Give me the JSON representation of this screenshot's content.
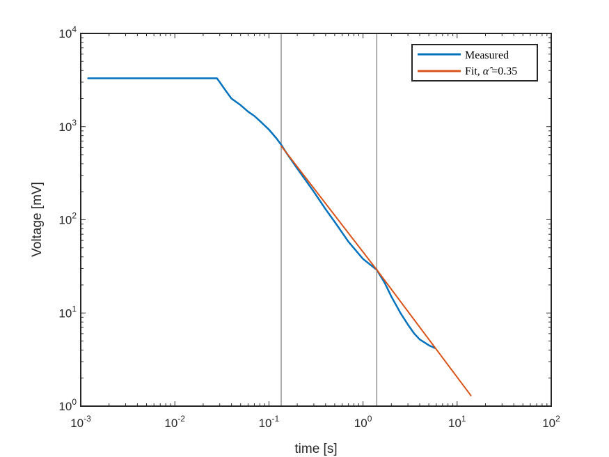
{
  "chart_data": {
    "type": "line",
    "xlabel": "time [s]",
    "ylabel": "Voltage [mV]",
    "xscale": "log",
    "yscale": "log",
    "xlim": [
      0.001,
      100
    ],
    "ylim": [
      1,
      10000
    ],
    "x_ticks": [
      {
        "base": "10",
        "exp": "-3"
      },
      {
        "base": "10",
        "exp": "-2"
      },
      {
        "base": "10",
        "exp": "-1"
      },
      {
        "base": "10",
        "exp": "0"
      },
      {
        "base": "10",
        "exp": "1"
      },
      {
        "base": "10",
        "exp": "2"
      }
    ],
    "y_ticks": [
      {
        "base": "10",
        "exp": "0"
      },
      {
        "base": "10",
        "exp": "1"
      },
      {
        "base": "10",
        "exp": "2"
      },
      {
        "base": "10",
        "exp": "3"
      },
      {
        "base": "10",
        "exp": "4"
      }
    ],
    "grid": false,
    "legend_position": "top-right",
    "vertical_lines_x": [
      0.135,
      1.4
    ],
    "series": [
      {
        "name": "Measured",
        "color": "#0072BD",
        "x": [
          0.0012,
          0.005,
          0.01,
          0.02,
          0.028,
          0.03,
          0.035,
          0.04,
          0.05,
          0.06,
          0.07,
          0.08,
          0.1,
          0.12,
          0.135,
          0.15,
          0.2,
          0.3,
          0.4,
          0.5,
          0.7,
          1.0,
          1.4,
          1.7,
          2.0,
          2.5,
          3.0,
          3.5,
          4.0,
          5.0,
          5.8
        ],
        "y": [
          3300,
          3300,
          3300,
          3300,
          3300,
          3000,
          2400,
          2000,
          1700,
          1450,
          1300,
          1150,
          930,
          750,
          640,
          540,
          355,
          200,
          130,
          95,
          58,
          38,
          29,
          21,
          15,
          10,
          7.5,
          6,
          5.2,
          4.5,
          4.2
        ]
      },
      {
        "name": "Fit, α̂ =0.35",
        "legend_prefix": "Fit, ",
        "legend_symbol": "α̂",
        "legend_suffix": " =0.35",
        "color": "#D95319",
        "x": [
          0.135,
          1.4,
          14.0
        ],
        "y": [
          620,
          29,
          1.3
        ]
      }
    ]
  }
}
